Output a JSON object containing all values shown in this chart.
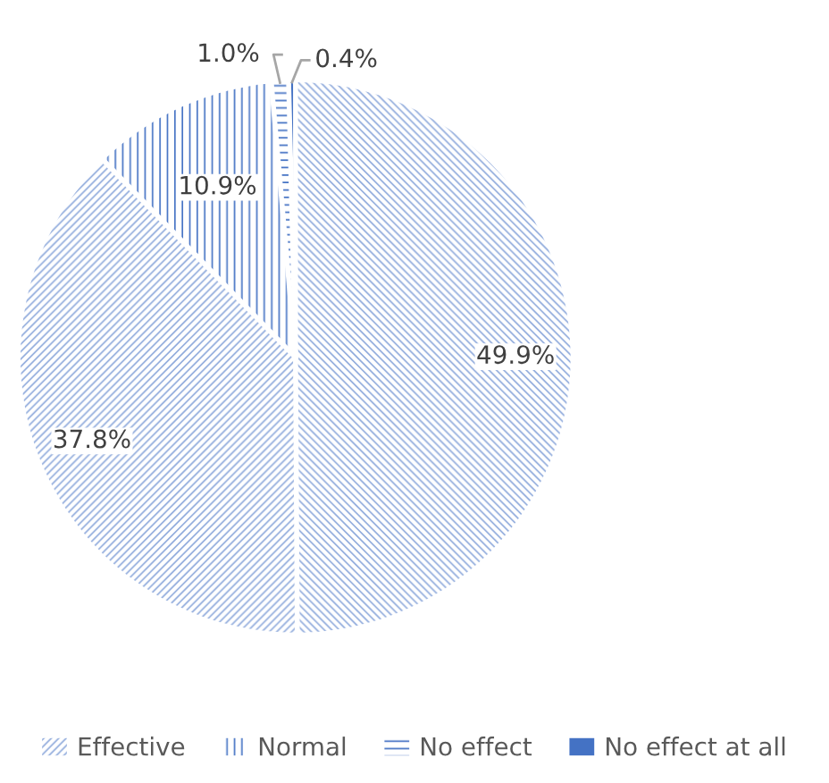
{
  "chart_data": {
    "type": "pie",
    "categories": [
      null,
      "Effective",
      "Normal",
      "No effect",
      "No effect at all"
    ],
    "values": [
      49.9,
      37.8,
      10.9,
      1.0,
      0.4
    ],
    "colors": [
      "#8faadc",
      "#8faadc",
      "#4472c4",
      "#4472c4",
      "#4472c4"
    ],
    "value_labels": [
      "49.9%",
      "37.8%",
      "10.9%",
      "1.0%",
      "0.4%"
    ],
    "legend": "bottom"
  }
}
